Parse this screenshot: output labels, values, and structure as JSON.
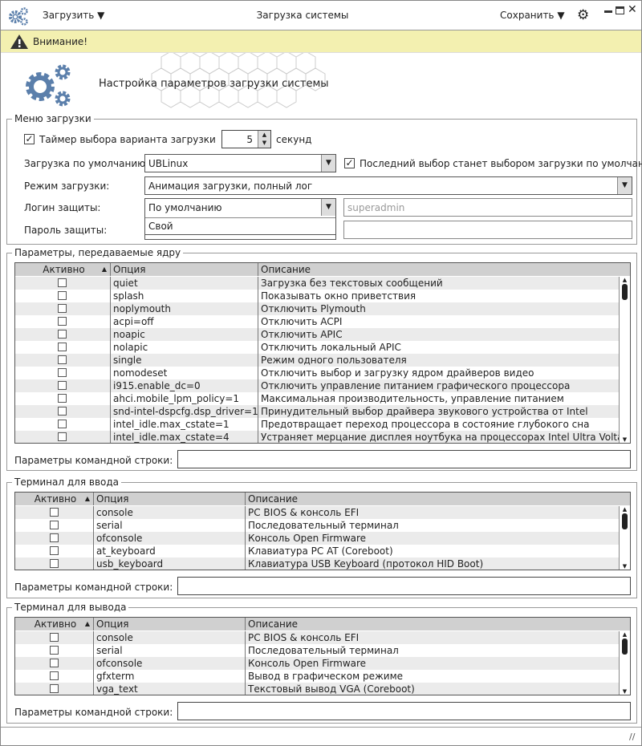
{
  "header": {
    "title": "Загрузка системы",
    "load_menu": "Загрузить",
    "save_menu": "Сохранить",
    "app_icon": "gears-icon",
    "settings_icon": "gear-icon"
  },
  "warning": {
    "text": "Внимание!",
    "icon": "warning-icon",
    "color": "#f3f0b0"
  },
  "banner": {
    "title": "Настройка параметров загрузки системы",
    "accent": "#5b7fab"
  },
  "boot_menu": {
    "legend": "Меню загрузки",
    "timer_label": "Таймер выбора варианта загрузки",
    "timer_checked": true,
    "timer_value": "5",
    "timer_unit": "секунд",
    "default_label": "Загрузка по умолчанию:",
    "default_value": "UBLinux",
    "last_choice_label": "Последний выбор станет выбором загрузки по умолчанию",
    "last_choice_checked": true,
    "mode_label": "Режим загрузки:",
    "mode_value": "Анимация загрузки, полный лог",
    "login_label": "Логин защиты:",
    "login_value": "По умолчанию",
    "login_options": [
      "Свой"
    ],
    "login_input_placeholder": "superadmin",
    "password_label": "Пароль защиты:",
    "password_value": ""
  },
  "kernel": {
    "legend": "Параметры, передаваемые ядру",
    "columns": [
      "Активно",
      "Опция",
      "Описание"
    ],
    "rows": [
      [
        "quiet",
        "Загрузка без текстовых сообщений"
      ],
      [
        "splash",
        "Показывать окно приветствия"
      ],
      [
        "noplymouth",
        "Отключить Plymouth"
      ],
      [
        "acpi=off",
        "Отключить ACPI"
      ],
      [
        "noapic",
        "Отключить APIC"
      ],
      [
        "nolapic",
        "Отключить локальный APIC"
      ],
      [
        "single",
        "Режим одного пользователя"
      ],
      [
        "nomodeset",
        "Отключить выбор и загрузку ядром драйверов видео"
      ],
      [
        "i915.enable_dc=0",
        "Отключить управление питанием графического процессора"
      ],
      [
        "ahci.mobile_lpm_policy=1",
        "Максимальная производительность, управление питанием"
      ],
      [
        "snd-intel-dspcfg.dsp_driver=1",
        "Принудительный выбор драйвера звукового устройства от Intel"
      ],
      [
        "intel_idle.max_cstate=1",
        "Предотвращает переход процессора в состояние глубокого сна"
      ],
      [
        "intel_idle.max_cstate=4",
        "Устраняет мерцание дисплея ноутбука на процессорах Intel Ultra Voltage"
      ]
    ],
    "cmdline_label": "Параметры командной строки:",
    "cmdline_value": ""
  },
  "input_terminal": {
    "legend": "Терминал для ввода",
    "columns": [
      "Активно",
      "Опция",
      "Описание"
    ],
    "rows": [
      [
        "console",
        "PC BIOS & консоль EFI"
      ],
      [
        "serial",
        "Последовательный терминал"
      ],
      [
        "ofconsole",
        "Консоль Open Firmware"
      ],
      [
        "at_keyboard",
        "Клавиатура PC AT (Coreboot)"
      ],
      [
        "usb_keyboard",
        "Клавиатура USB Keyboard (протокол HID Boot)"
      ]
    ],
    "cmdline_label": "Параметры командной строки:",
    "cmdline_value": ""
  },
  "output_terminal": {
    "legend": "Терминал для вывода",
    "columns": [
      "Активно",
      "Опция",
      "Описание"
    ],
    "rows": [
      [
        "console",
        "PC BIOS & консоль EFI"
      ],
      [
        "serial",
        "Последовательный терминал"
      ],
      [
        "ofconsole",
        "Консоль Open Firmware"
      ],
      [
        "gfxterm",
        "Вывод в графическом режиме"
      ],
      [
        "vga_text",
        "Текстовый вывод VGA (Coreboot)"
      ]
    ],
    "cmdline_label": "Параметры командной строки:",
    "cmdline_value": ""
  }
}
